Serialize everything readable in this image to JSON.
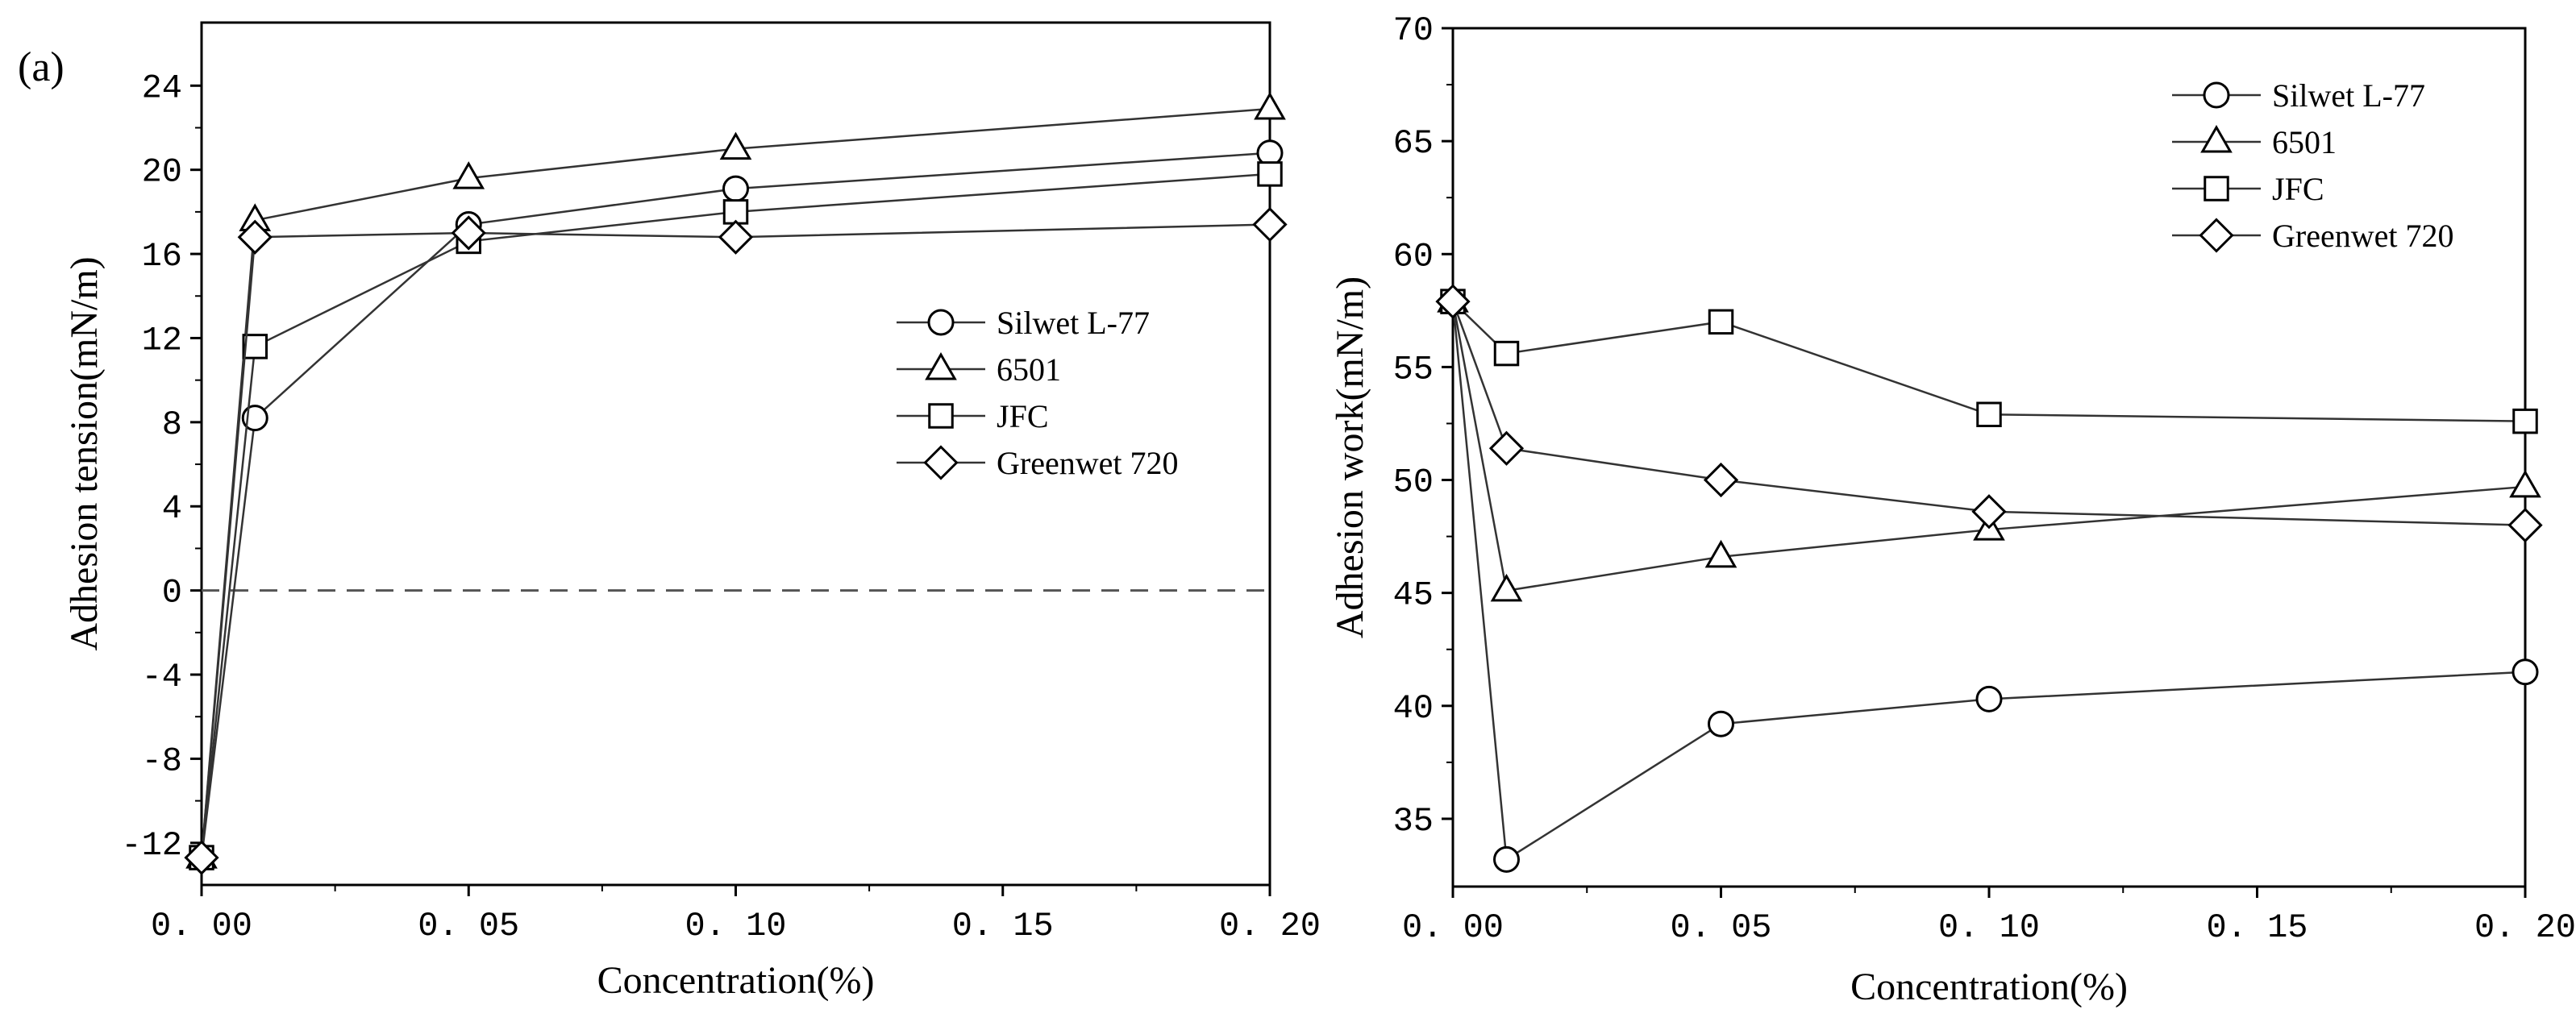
{
  "chart_data": [
    {
      "type": "line",
      "panel_label": "(a)",
      "title": "",
      "xlabel": "Concentration(%)",
      "ylabel": "Adhesion tension(mN/m)",
      "xlim": [
        0,
        0.2
      ],
      "ylim": [
        -14,
        27
      ],
      "xticks": [
        0,
        0.05,
        0.1,
        0.15,
        0.2
      ],
      "xtick_labels": [
        "0. 00",
        "0. 05",
        "0. 10",
        "0. 15",
        "0. 20"
      ],
      "yticks": [
        -12,
        -8,
        -4,
        0,
        4,
        8,
        12,
        16,
        20,
        24
      ],
      "ytick_labels": [
        "-12",
        "-8",
        "-4",
        "0",
        "4",
        "8",
        "12",
        "16",
        "20",
        "24"
      ],
      "reference_line": 0,
      "legend_position": "center-right",
      "x": [
        0,
        0.01,
        0.05,
        0.1,
        0.2
      ],
      "series": [
        {
          "name": "Silwet L-77",
          "marker": "circle",
          "values": [
            -12.7,
            8.2,
            17.4,
            19.1,
            20.8
          ]
        },
        {
          "name": "6501",
          "marker": "triangle",
          "values": [
            -12.7,
            17.6,
            19.6,
            21.0,
            22.9
          ]
        },
        {
          "name": "JFC",
          "marker": "square",
          "values": [
            -12.7,
            11.6,
            16.6,
            18.0,
            19.8
          ]
        },
        {
          "name": "Greenwet 720",
          "marker": "diamond",
          "values": [
            -12.7,
            16.8,
            17.0,
            16.8,
            17.4
          ]
        }
      ]
    },
    {
      "type": "line",
      "panel_label": "",
      "title": "",
      "xlabel": "Concentration(%)",
      "ylabel": "Adhesion work(mN/m)",
      "xlim": [
        0,
        0.2
      ],
      "ylim": [
        32,
        70
      ],
      "xticks": [
        0,
        0.05,
        0.1,
        0.15,
        0.2
      ],
      "xtick_labels": [
        "0. 00",
        "0. 05",
        "0. 10",
        "0. 15",
        "0. 20"
      ],
      "yticks": [
        35,
        40,
        45,
        50,
        55,
        60,
        65,
        70
      ],
      "ytick_labels": [
        "35",
        "40",
        "45",
        "50",
        "55",
        "60",
        "65",
        "70"
      ],
      "legend_position": "top-right",
      "x": [
        0,
        0.01,
        0.05,
        0.1,
        0.2
      ],
      "series": [
        {
          "name": "Silwet L-77",
          "marker": "circle",
          "values": [
            57.9,
            33.2,
            39.2,
            40.3,
            41.5
          ]
        },
        {
          "name": "6501",
          "marker": "triangle",
          "values": [
            57.9,
            45.1,
            46.6,
            47.8,
            49.7
          ]
        },
        {
          "name": "JFC",
          "marker": "square",
          "values": [
            57.9,
            55.6,
            57.0,
            52.9,
            52.6
          ]
        },
        {
          "name": "Greenwet 720",
          "marker": "diamond",
          "values": [
            57.9,
            51.4,
            50.0,
            48.6,
            48.0
          ]
        }
      ]
    }
  ]
}
